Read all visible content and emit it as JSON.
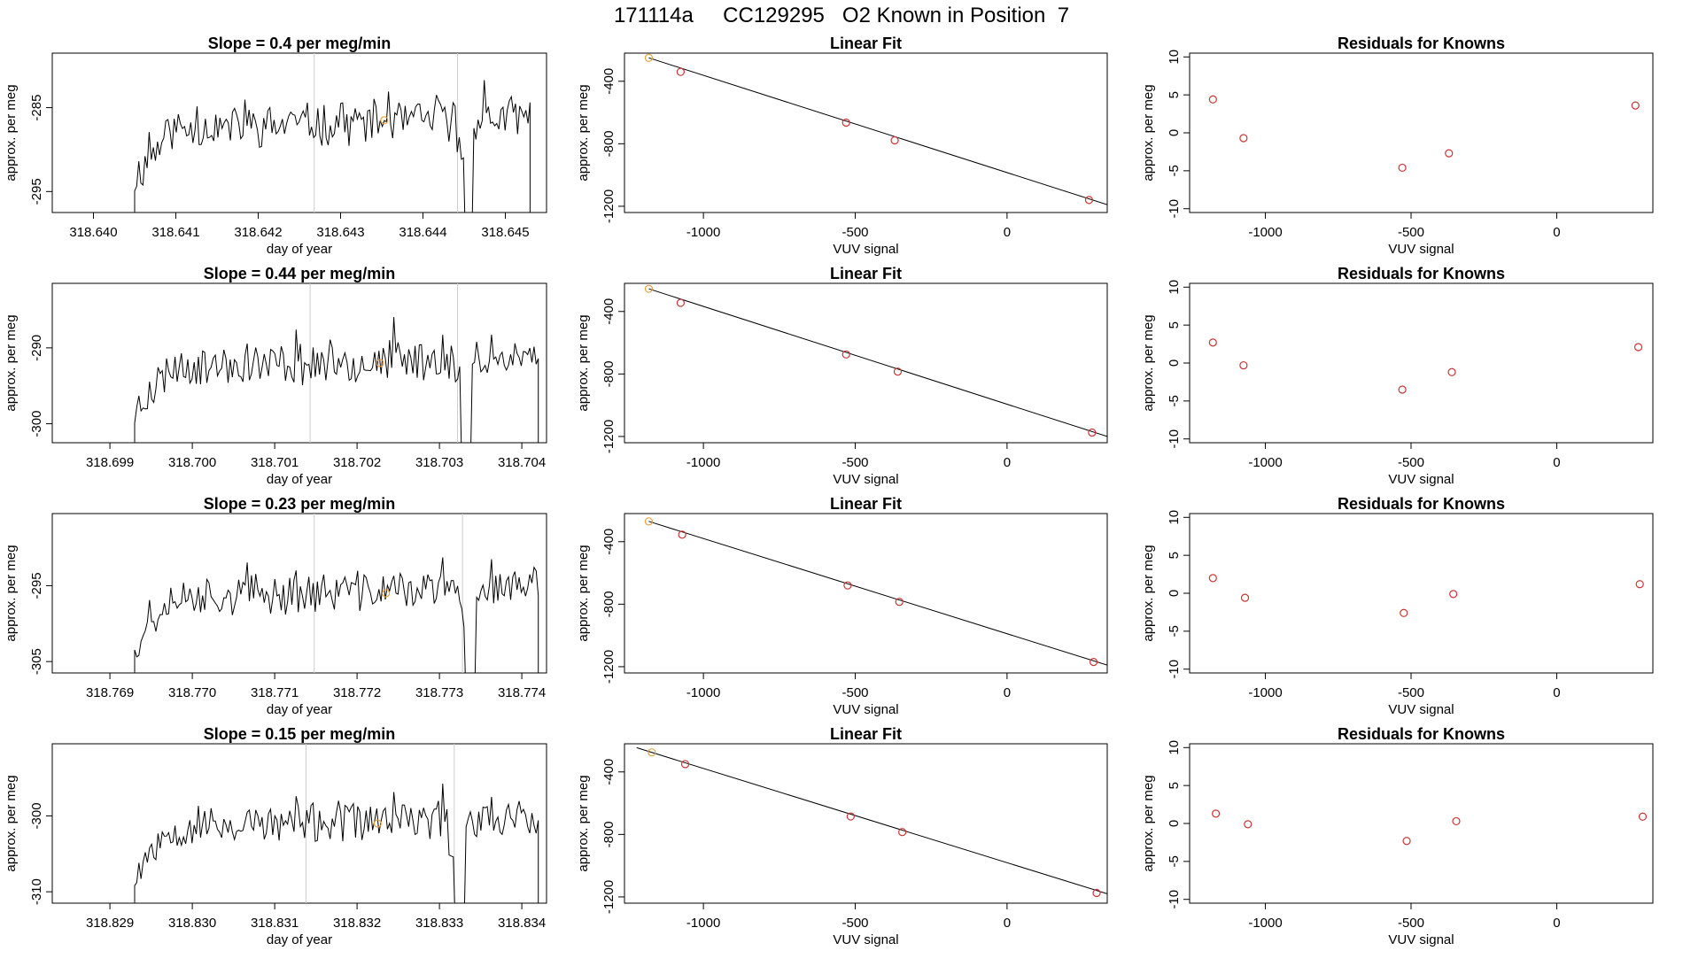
{
  "figure_title": "171114a     CC129295   O2 Known in Position  7",
  "colors": {
    "trace": "#000000",
    "marker": "#cc3333",
    "highlight": "#e8a040",
    "vline": "#cccccc",
    "fit": "#000000"
  },
  "chart_data": [
    {
      "type": "line",
      "panel": "time-series",
      "row": 1,
      "title": "Slope =  0.4  per meg/min",
      "xlabel": "day of year",
      "ylabel": "approx. per meg",
      "xlim": [
        318.6395,
        318.6455
      ],
      "ylim": [
        -297.5,
        -278.5
      ],
      "xticks": [
        318.64,
        318.641,
        318.642,
        318.643,
        318.644,
        318.645
      ],
      "xtick_labels": [
        "318.640",
        "318.641",
        "318.642",
        "318.643",
        "318.644",
        "318.645"
      ],
      "yticks": [
        -295,
        -285
      ],
      "ytick_labels": [
        "-295",
        "-285"
      ],
      "x_start": 318.6405,
      "x_end": 318.6453,
      "level": -287.5,
      "amplitude": 2.2,
      "seed": 11,
      "vlines": [
        318.64268,
        318.64442
      ],
      "highlight": {
        "x": 318.64353,
        "y": -286.5
      },
      "dips": [
        318.64455
      ]
    },
    {
      "type": "scatter",
      "panel": "linear-fit",
      "row": 1,
      "title": "Linear Fit",
      "xlabel": "VUV signal",
      "ylabel": "approx. per meg",
      "xlim": [
        -1260,
        330
      ],
      "ylim": [
        -1240,
        -220
      ],
      "xticks": [
        -1000,
        -500,
        0
      ],
      "xtick_labels": [
        "-1000",
        "-500",
        "0"
      ],
      "yticks": [
        -400,
        -800,
        -1200
      ],
      "ytick_labels": [
        "-400",
        "-800",
        "-1200"
      ],
      "points": [
        [
          -1180,
          -250
        ],
        [
          -1075,
          -340
        ],
        [
          -530,
          -665
        ],
        [
          -370,
          -778
        ],
        [
          270,
          -1160
        ]
      ],
      "highlight_index": 0,
      "fit_line": [
        [
          -1180,
          -250
        ],
        [
          330,
          -1190
        ]
      ]
    },
    {
      "type": "scatter",
      "panel": "residuals",
      "row": 1,
      "title": "Residuals for Knowns",
      "xlabel": "VUV signal",
      "ylabel": "approx. per meg",
      "xlim": [
        -1260,
        330
      ],
      "ylim": [
        -10.5,
        10.5
      ],
      "xticks": [
        -1000,
        -500,
        0
      ],
      "xtick_labels": [
        "-1000",
        "-500",
        "0"
      ],
      "yticks": [
        10,
        5,
        0,
        -5,
        -10
      ],
      "ytick_labels": [
        "10",
        "5",
        "0",
        "-5",
        "-10"
      ],
      "points": [
        [
          -1180,
          4.4
        ],
        [
          -1075,
          -0.7
        ],
        [
          -530,
          -4.6
        ],
        [
          -370,
          -2.7
        ],
        [
          270,
          3.6
        ]
      ]
    },
    {
      "type": "line",
      "panel": "time-series",
      "row": 2,
      "title": "Slope =  0.44  per meg/min",
      "xlabel": "day of year",
      "ylabel": "approx. per meg",
      "xlim": [
        318.6983,
        318.7043
      ],
      "ylim": [
        -302.5,
        -281.5
      ],
      "xticks": [
        318.699,
        318.7,
        318.701,
        318.702,
        318.703,
        318.704
      ],
      "xtick_labels": [
        "318.699",
        "318.700",
        "318.701",
        "318.702",
        "318.703",
        "318.704"
      ],
      "yticks": [
        -300,
        -290
      ],
      "ytick_labels": [
        "-300",
        "-290"
      ],
      "x_start": 318.6993,
      "x_end": 318.7042,
      "level": -292.5,
      "amplitude": 2.4,
      "seed": 23,
      "vlines": [
        318.70143,
        318.70322
      ],
      "highlight": {
        "x": 318.70228,
        "y": -292
      },
      "dips": [
        318.70333
      ]
    },
    {
      "type": "scatter",
      "panel": "linear-fit",
      "row": 2,
      "title": "Linear Fit",
      "xlabel": "VUV signal",
      "ylabel": "approx. per meg",
      "xlim": [
        -1260,
        330
      ],
      "ylim": [
        -1240,
        -220
      ],
      "xticks": [
        -1000,
        -500,
        0
      ],
      "xtick_labels": [
        "-1000",
        "-500",
        "0"
      ],
      "yticks": [
        -400,
        -800,
        -1200
      ],
      "ytick_labels": [
        "-400",
        "-800",
        "-1200"
      ],
      "points": [
        [
          -1180,
          -255
        ],
        [
          -1075,
          -345
        ],
        [
          -530,
          -675
        ],
        [
          -360,
          -785
        ],
        [
          280,
          -1175
        ]
      ],
      "highlight_index": 0,
      "fit_line": [
        [
          -1180,
          -255
        ],
        [
          330,
          -1200
        ]
      ]
    },
    {
      "type": "scatter",
      "panel": "residuals",
      "row": 2,
      "title": "Residuals for Knowns",
      "xlabel": "VUV signal",
      "ylabel": "approx. per meg",
      "xlim": [
        -1260,
        330
      ],
      "ylim": [
        -10.5,
        10.5
      ],
      "xticks": [
        -1000,
        -500,
        0
      ],
      "xtick_labels": [
        "-1000",
        "-500",
        "0"
      ],
      "yticks": [
        10,
        5,
        0,
        -5,
        -10
      ],
      "ytick_labels": [
        "10",
        "5",
        "0",
        "-5",
        "-10"
      ],
      "points": [
        [
          -1180,
          2.7
        ],
        [
          -1075,
          -0.3
        ],
        [
          -530,
          -3.5
        ],
        [
          -360,
          -1.2
        ],
        [
          280,
          2.1
        ]
      ]
    },
    {
      "type": "line",
      "panel": "time-series",
      "row": 3,
      "title": "Slope =  0.23  per meg/min",
      "xlabel": "day of year",
      "ylabel": "approx. per meg",
      "xlim": [
        318.7683,
        318.7743
      ],
      "ylim": [
        -306.5,
        -285.5
      ],
      "xticks": [
        318.769,
        318.77,
        318.771,
        318.772,
        318.773,
        318.774
      ],
      "xtick_labels": [
        "318.769",
        "318.770",
        "318.771",
        "318.772",
        "318.773",
        "318.774"
      ],
      "yticks": [
        -305,
        -295
      ],
      "ytick_labels": [
        "-305",
        "-295"
      ],
      "x_start": 318.7693,
      "x_end": 318.7742,
      "level": -296.5,
      "amplitude": 2.3,
      "seed": 37,
      "vlines": [
        318.77148,
        318.77328
      ],
      "highlight": {
        "x": 318.77235,
        "y": -296
      },
      "dips": [
        318.77338
      ]
    },
    {
      "type": "scatter",
      "panel": "linear-fit",
      "row": 3,
      "title": "Linear Fit",
      "xlabel": "VUV signal",
      "ylabel": "approx. per meg",
      "xlim": [
        -1260,
        330
      ],
      "ylim": [
        -1240,
        -220
      ],
      "xticks": [
        -1000,
        -500,
        0
      ],
      "xtick_labels": [
        "-1000",
        "-500",
        "0"
      ],
      "yticks": [
        -400,
        -800,
        -1200
      ],
      "ytick_labels": [
        "-400",
        "-800",
        "-1200"
      ],
      "points": [
        [
          -1180,
          -270
        ],
        [
          -1070,
          -355
        ],
        [
          -525,
          -680
        ],
        [
          -355,
          -785
        ],
        [
          285,
          -1170
        ]
      ],
      "highlight_index": 0,
      "fit_line": [
        [
          -1180,
          -270
        ],
        [
          330,
          -1190
        ]
      ]
    },
    {
      "type": "scatter",
      "panel": "residuals",
      "row": 3,
      "title": "Residuals for Knowns",
      "xlabel": "VUV signal",
      "ylabel": "approx. per meg",
      "xlim": [
        -1260,
        330
      ],
      "ylim": [
        -10.5,
        10.5
      ],
      "xticks": [
        -1000,
        -500,
        0
      ],
      "xtick_labels": [
        "-1000",
        "-500",
        "0"
      ],
      "yticks": [
        10,
        5,
        0,
        -5,
        -10
      ],
      "ytick_labels": [
        "10",
        "5",
        "0",
        "-5",
        "-10"
      ],
      "points": [
        [
          -1180,
          2.0
        ],
        [
          -1070,
          -0.6
        ],
        [
          -525,
          -2.6
        ],
        [
          -355,
          -0.1
        ],
        [
          285,
          1.2
        ]
      ]
    },
    {
      "type": "line",
      "panel": "time-series",
      "row": 4,
      "title": "Slope =  0.15  per meg/min",
      "xlabel": "day of year",
      "ylabel": "approx. per meg",
      "xlim": [
        318.8283,
        318.8343
      ],
      "ylim": [
        -311.5,
        -290.5
      ],
      "xticks": [
        318.829,
        318.83,
        318.831,
        318.832,
        318.833,
        318.834
      ],
      "xtick_labels": [
        "318.829",
        "318.830",
        "318.831",
        "318.832",
        "318.833",
        "318.834"
      ],
      "yticks": [
        -310,
        -300
      ],
      "ytick_labels": [
        "-310",
        "-300"
      ],
      "x_start": 318.8293,
      "x_end": 318.8342,
      "level": -301.5,
      "amplitude": 2.3,
      "seed": 53,
      "vlines": [
        318.83138,
        318.83318
      ],
      "highlight": {
        "x": 318.83225,
        "y": -301
      },
      "dips": [
        318.83325
      ]
    },
    {
      "type": "scatter",
      "panel": "linear-fit",
      "row": 4,
      "title": "Linear Fit",
      "xlabel": "VUV signal",
      "ylabel": "approx. per meg",
      "xlim": [
        -1260,
        330
      ],
      "ylim": [
        -1240,
        -220
      ],
      "xticks": [
        -1000,
        -500,
        0
      ],
      "xtick_labels": [
        "-1000",
        "-500",
        "0"
      ],
      "yticks": [
        -400,
        -800,
        -1200
      ],
      "ytick_labels": [
        "-400",
        "-800",
        "-1200"
      ],
      "points": [
        [
          -1170,
          -275
        ],
        [
          -1060,
          -350
        ],
        [
          -515,
          -685
        ],
        [
          -345,
          -785
        ],
        [
          295,
          -1175
        ]
      ],
      "highlight_index": 0,
      "fit_line": [
        [
          -1220,
          -245
        ],
        [
          330,
          -1180
        ]
      ]
    },
    {
      "type": "scatter",
      "panel": "residuals",
      "row": 4,
      "title": "Residuals for Knowns",
      "xlabel": "VUV signal",
      "ylabel": "approx. per meg",
      "xlim": [
        -1260,
        330
      ],
      "ylim": [
        -10.5,
        10.5
      ],
      "xticks": [
        -1000,
        -500,
        0
      ],
      "xtick_labels": [
        "-1000",
        "-500",
        "0"
      ],
      "yticks": [
        10,
        5,
        0,
        -5,
        -10
      ],
      "ytick_labels": [
        "10",
        "5",
        "0",
        "-5",
        "-10"
      ],
      "points": [
        [
          -1170,
          1.3
        ],
        [
          -1060,
          -0.1
        ],
        [
          -515,
          -2.3
        ],
        [
          -345,
          0.3
        ],
        [
          295,
          0.9
        ]
      ]
    }
  ]
}
